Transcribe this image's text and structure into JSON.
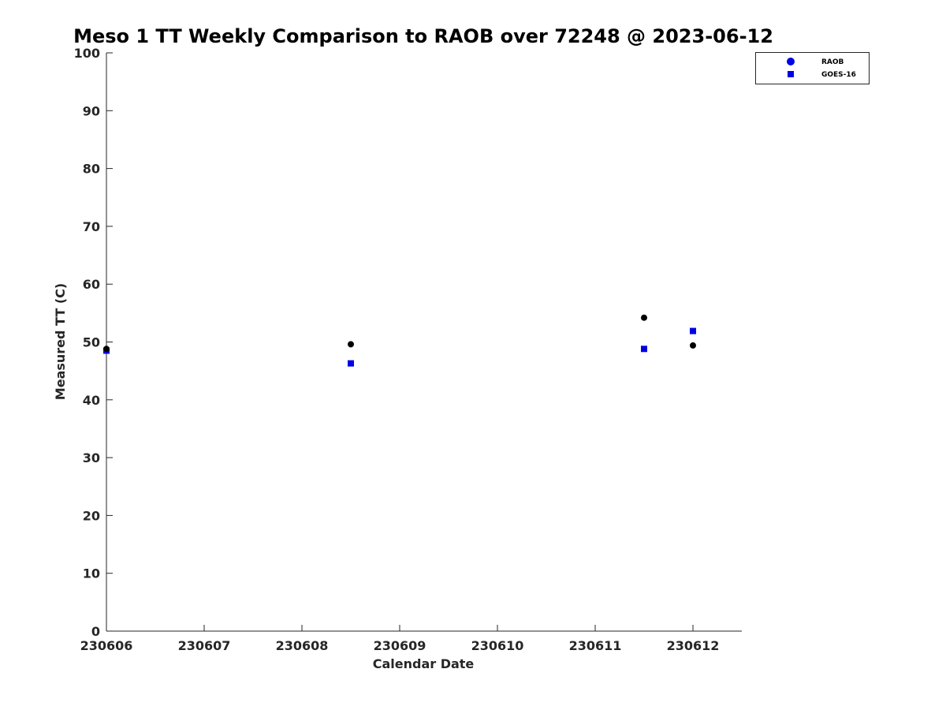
{
  "chart_data": {
    "type": "scatter",
    "title": "Meso 1 TT Weekly Comparison to RAOB over 72248 @ 2023-06-12",
    "xlabel": "Calendar Date",
    "ylabel": "Measured TT (C)",
    "xlim": [
      0,
      6.5
    ],
    "ylim": [
      0,
      100
    ],
    "x_tick_values": [
      0,
      1,
      2,
      3,
      4,
      5,
      6
    ],
    "x_tick_labels": [
      "230606",
      "230607",
      "230608",
      "230609",
      "230610",
      "230611",
      "230612"
    ],
    "y_tick_values": [
      0,
      10,
      20,
      30,
      40,
      50,
      60,
      70,
      80,
      90,
      100
    ],
    "y_tick_labels": [
      "0",
      "10",
      "20",
      "30",
      "40",
      "50",
      "60",
      "70",
      "80",
      "90",
      "100"
    ],
    "grid": false,
    "legend_position": "top-right",
    "series": [
      {
        "name": "RAOB",
        "marker": "circle",
        "color": "#000000",
        "legend_color": "#0000e6",
        "x": [
          0,
          2.5,
          5.5,
          6
        ],
        "y": [
          48.8,
          49.6,
          54.2,
          49.4
        ]
      },
      {
        "name": "GOES-16",
        "marker": "square",
        "color": "#0000e6",
        "legend_color": "#0000e6",
        "x": [
          0,
          2.5,
          5.5,
          6
        ],
        "y": [
          48.5,
          46.3,
          48.8,
          51.9
        ]
      }
    ]
  }
}
